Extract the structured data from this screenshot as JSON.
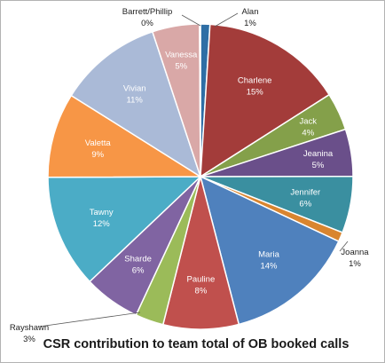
{
  "chart_data": {
    "type": "pie",
    "title": "CSR contribution to team total of OB booked calls",
    "start": "12 o'clock, clockwise",
    "slices": [
      {
        "name": "Alan",
        "value": 1,
        "value_label": "1%",
        "color": "#2e6ea5",
        "label_style": "outside"
      },
      {
        "name": "Charlene",
        "value": 15,
        "value_label": "15%",
        "color": "#a33c3a",
        "label_style": "inside"
      },
      {
        "name": "Jack",
        "value": 4,
        "value_label": "4%",
        "color": "#84a04a",
        "label_style": "inside"
      },
      {
        "name": "Jeanina",
        "value": 5,
        "value_label": "5%",
        "color": "#6a4f8a",
        "label_style": "inside"
      },
      {
        "name": "Jennifer",
        "value": 6,
        "value_label": "6%",
        "color": "#3a8fa0",
        "label_style": "inside"
      },
      {
        "name": "Joanna",
        "value": 1,
        "value_label": "1%",
        "color": "#d9852f",
        "label_style": "outside"
      },
      {
        "name": "Maria",
        "value": 14,
        "value_label": "14%",
        "color": "#4f81bd",
        "label_style": "inside"
      },
      {
        "name": "Pauline",
        "value": 8,
        "value_label": "8%",
        "color": "#c0504d",
        "label_style": "inside"
      },
      {
        "name": "Rayshawn",
        "value": 3,
        "value_label": "3%",
        "color": "#9bbb59",
        "label_style": "outside"
      },
      {
        "name": "Sharde",
        "value": 6,
        "value_label": "6%",
        "color": "#8064a2",
        "label_style": "inside"
      },
      {
        "name": "Tawny",
        "value": 12,
        "value_label": "12%",
        "color": "#4bacc6",
        "label_style": "inside"
      },
      {
        "name": "Valetta",
        "value": 9,
        "value_label": "9%",
        "color": "#f79646",
        "label_style": "inside"
      },
      {
        "name": "Vivian",
        "value": 11,
        "value_label": "11%",
        "color": "#aabad7",
        "label_style": "inside"
      },
      {
        "name": "Vanessa",
        "value": 5,
        "value_label": "5%",
        "color": "#d9a8a7",
        "label_style": "inside"
      },
      {
        "name": "Barrett/Phillip",
        "value": 0.1,
        "value_label": "0%",
        "color": "#c5d3e8",
        "label_style": "outside"
      }
    ]
  }
}
